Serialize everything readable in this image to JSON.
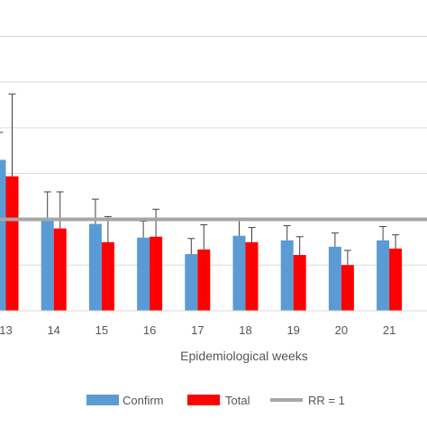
{
  "chart_data": {
    "type": "bar",
    "title": "",
    "xlabel": "Epidemiological weeks",
    "ylabel": "",
    "categories": [
      "13",
      "14",
      "15",
      "16",
      "17",
      "18",
      "19",
      "20",
      "21"
    ],
    "series": [
      {
        "name": "Confirm",
        "color": "#5B9BD5",
        "values": [
          1.65,
          1.0,
          0.95,
          0.8,
          0.62,
          0.82,
          0.77,
          0.7,
          0.77
        ],
        "error": [
          0.3,
          0.3,
          0.27,
          0.18,
          0.17,
          0.18,
          0.16,
          0.15,
          0.15
        ]
      },
      {
        "name": "Total",
        "color": "#FF0000",
        "values": [
          1.47,
          0.9,
          0.75,
          0.81,
          0.67,
          0.75,
          0.61,
          0.5,
          0.68
        ],
        "error": [
          0.9,
          0.4,
          0.28,
          0.3,
          0.27,
          0.16,
          0.2,
          0.16,
          0.15
        ]
      }
    ],
    "reference_line": {
      "name": "RR = 1",
      "value": 1.0,
      "color": "#A6A6A6"
    },
    "ylim": [
      0,
      3.2
    ],
    "grid": true,
    "legend_position": "bottom"
  }
}
